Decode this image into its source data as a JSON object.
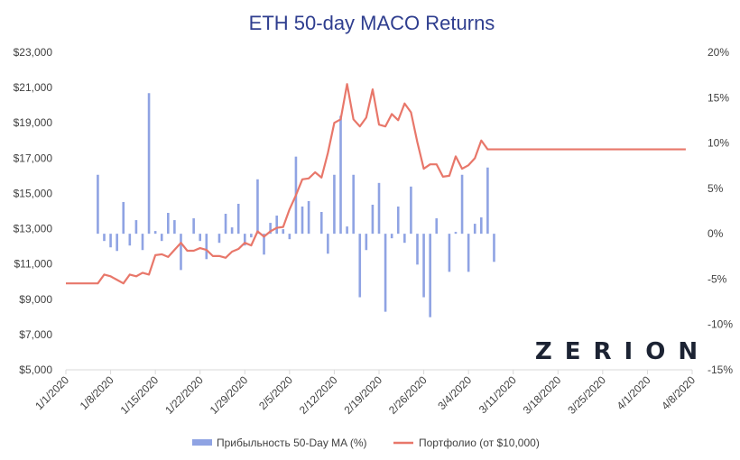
{
  "chart_data": {
    "type": "bar+line",
    "title": "ETH 50-day MACO Returns",
    "colors": {
      "bars": "#8fa3e3",
      "line": "#e8776a",
      "title": "#2f3e8f",
      "axis": "#d9d9d9"
    },
    "left_axis": {
      "range": [
        5000,
        23000
      ],
      "ticks": [
        5000,
        7000,
        9000,
        11000,
        13000,
        15000,
        17000,
        19000,
        21000,
        23000
      ],
      "tick_labels": [
        "$5,000",
        "$7,000",
        "$9,000",
        "$11,000",
        "$13,000",
        "$15,000",
        "$17,000",
        "$19,000",
        "$21,000",
        "$23,000"
      ]
    },
    "right_axis": {
      "range": [
        -15,
        20
      ],
      "ticks": [
        -15,
        -10,
        -5,
        0,
        5,
        10,
        15,
        20
      ],
      "tick_labels": [
        "-15%",
        "-10%",
        "-5%",
        "0%",
        "5%",
        "10%",
        "15%",
        "20%"
      ]
    },
    "x_axis": {
      "day_range": [
        0,
        98
      ],
      "tick_days": [
        0,
        7,
        14,
        21,
        28,
        35,
        42,
        49,
        56,
        63,
        70,
        77,
        84,
        91,
        98
      ],
      "tick_labels": [
        "1/1/2020",
        "1/8/2020",
        "1/15/2020",
        "1/22/2020",
        "1/29/2020",
        "2/5/2020",
        "2/12/2020",
        "2/19/2020",
        "2/26/2020",
        "3/4/2020",
        "3/11/2020",
        "3/18/2020",
        "3/25/2020",
        "4/1/2020",
        "4/8/2020"
      ]
    },
    "series": [
      {
        "name": "Прибыльность 50-Day MA (%)",
        "kind": "bar",
        "axis": "right",
        "points": [
          [
            5,
            6.5
          ],
          [
            6,
            -0.8
          ],
          [
            7,
            -1.5
          ],
          [
            8,
            -1.9
          ],
          [
            9,
            3.5
          ],
          [
            10,
            -1.3
          ],
          [
            11,
            1.5
          ],
          [
            12,
            -1.8
          ],
          [
            13,
            15.5
          ],
          [
            14,
            0.3
          ],
          [
            15,
            -0.8
          ],
          [
            16,
            2.3
          ],
          [
            17,
            1.5
          ],
          [
            18,
            -4
          ],
          [
            20,
            1.7
          ],
          [
            21,
            -0.8
          ],
          [
            22,
            -2.8
          ],
          [
            24,
            -1
          ],
          [
            25,
            2.2
          ],
          [
            26,
            0.7
          ],
          [
            27,
            3.3
          ],
          [
            28,
            -1.3
          ],
          [
            29,
            -0.4
          ],
          [
            30,
            6
          ],
          [
            31,
            -2.3
          ],
          [
            32,
            1.2
          ],
          [
            33,
            2
          ],
          [
            34,
            0.5
          ],
          [
            35,
            -0.6
          ],
          [
            36,
            8.5
          ],
          [
            37,
            3
          ],
          [
            38,
            3.6
          ],
          [
            40,
            2.4
          ],
          [
            41,
            -2.2
          ],
          [
            42,
            6.5
          ],
          [
            43,
            13
          ],
          [
            44,
            0.8
          ],
          [
            45,
            6.5
          ],
          [
            46,
            -7
          ],
          [
            47,
            -1.8
          ],
          [
            48,
            3.2
          ],
          [
            49,
            5.6
          ],
          [
            50,
            -8.6
          ],
          [
            51,
            -0.5
          ],
          [
            52,
            3
          ],
          [
            53,
            -1
          ],
          [
            54,
            5.2
          ],
          [
            55,
            -3.4
          ],
          [
            56,
            -7
          ],
          [
            57,
            -9.2
          ],
          [
            58,
            1.7
          ],
          [
            60,
            -4.2
          ],
          [
            61,
            0.2
          ],
          [
            62,
            6.5
          ],
          [
            63,
            -4.2
          ],
          [
            64,
            1.1
          ],
          [
            65,
            1.8
          ],
          [
            66,
            7.3
          ],
          [
            67,
            -3.1
          ]
        ]
      },
      {
        "name": "Портфолио (от $10,000)",
        "kind": "line",
        "axis": "left",
        "points": [
          [
            0,
            9900
          ],
          [
            5,
            9900
          ],
          [
            6,
            10400
          ],
          [
            7,
            10300
          ],
          [
            8,
            10100
          ],
          [
            9,
            9900
          ],
          [
            10,
            10400
          ],
          [
            11,
            10300
          ],
          [
            12,
            10500
          ],
          [
            13,
            10400
          ],
          [
            14,
            11500
          ],
          [
            15,
            11550
          ],
          [
            16,
            11400
          ],
          [
            17,
            11800
          ],
          [
            18,
            12200
          ],
          [
            19,
            11750
          ],
          [
            20,
            11750
          ],
          [
            21,
            11900
          ],
          [
            22,
            11800
          ],
          [
            23,
            11450
          ],
          [
            24,
            11450
          ],
          [
            25,
            11350
          ],
          [
            26,
            11700
          ],
          [
            27,
            11850
          ],
          [
            28,
            12200
          ],
          [
            29,
            12050
          ],
          [
            30,
            12850
          ],
          [
            31,
            12550
          ],
          [
            32,
            12850
          ],
          [
            33,
            13050
          ],
          [
            34,
            13100
          ],
          [
            35,
            14100
          ],
          [
            36,
            14900
          ],
          [
            37,
            15800
          ],
          [
            38,
            15850
          ],
          [
            39,
            16200
          ],
          [
            40,
            15900
          ],
          [
            41,
            17300
          ],
          [
            42,
            19000
          ],
          [
            43,
            19200
          ],
          [
            44,
            21200
          ],
          [
            45,
            19200
          ],
          [
            46,
            18800
          ],
          [
            47,
            19300
          ],
          [
            48,
            20900
          ],
          [
            49,
            18900
          ],
          [
            50,
            18800
          ],
          [
            51,
            19500
          ],
          [
            52,
            19150
          ],
          [
            53,
            20100
          ],
          [
            54,
            19600
          ],
          [
            55,
            17900
          ],
          [
            56,
            16400
          ],
          [
            57,
            16650
          ],
          [
            58,
            16650
          ],
          [
            59,
            15950
          ],
          [
            60,
            16000
          ],
          [
            61,
            17100
          ],
          [
            62,
            16400
          ],
          [
            63,
            16600
          ],
          [
            64,
            17000
          ],
          [
            65,
            18000
          ],
          [
            66,
            17500
          ],
          [
            97,
            17500
          ]
        ]
      }
    ],
    "legend": [
      "Прибыльность 50-Day MA (%)",
      "Портфолио (от $10,000)"
    ],
    "legend_position": "bottom",
    "watermark": "ZERION"
  }
}
